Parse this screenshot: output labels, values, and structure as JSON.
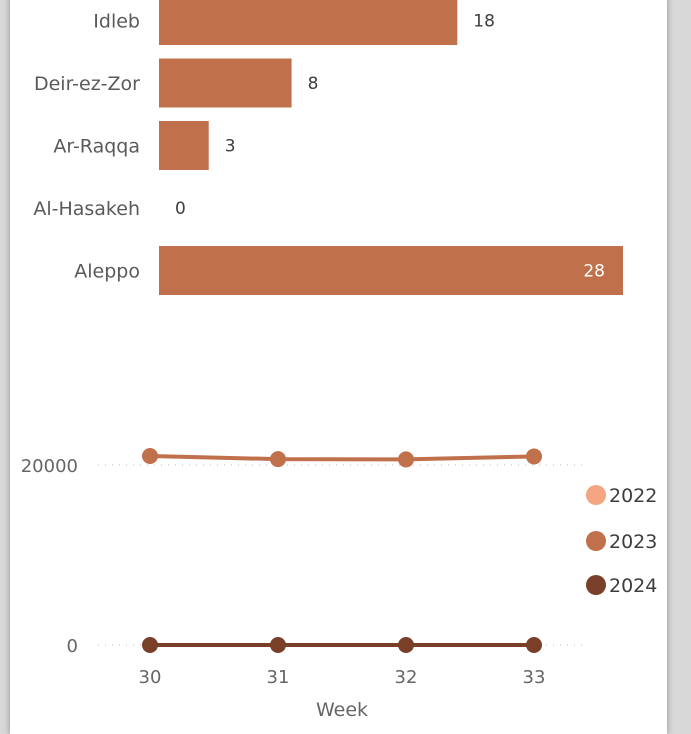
{
  "chart_data": [
    {
      "type": "bar",
      "orientation": "horizontal",
      "categories": [
        "Idleb",
        "Deir-ez-Zor",
        "Ar-Raqqa",
        "Al-Hasakeh",
        "Aleppo"
      ],
      "values": [
        18,
        8,
        3,
        0,
        28
      ],
      "value_labels": [
        "18",
        "8",
        "3",
        "0",
        "28"
      ],
      "color": "#c0704a",
      "xlim": [
        0,
        28
      ]
    },
    {
      "type": "line",
      "x": [
        30,
        31,
        32,
        33
      ],
      "x_ticks": [
        "30",
        "31",
        "32",
        "33"
      ],
      "xlabel": "Week",
      "y_ticks": [
        {
          "value": 0,
          "label": "0"
        },
        {
          "value": 20000,
          "label": "20000"
        }
      ],
      "ylim": [
        0,
        21000
      ],
      "grid": true,
      "legend_position": "right",
      "series": [
        {
          "name": "2022",
          "color": "#f4a582",
          "values": [
            null,
            null,
            null,
            null
          ]
        },
        {
          "name": "2023",
          "color": "#c0704a",
          "values": [
            21000,
            20650,
            20620,
            20950
          ]
        },
        {
          "name": "2024",
          "color": "#7a3f28",
          "values": [
            0,
            0,
            0,
            0
          ]
        }
      ]
    }
  ]
}
